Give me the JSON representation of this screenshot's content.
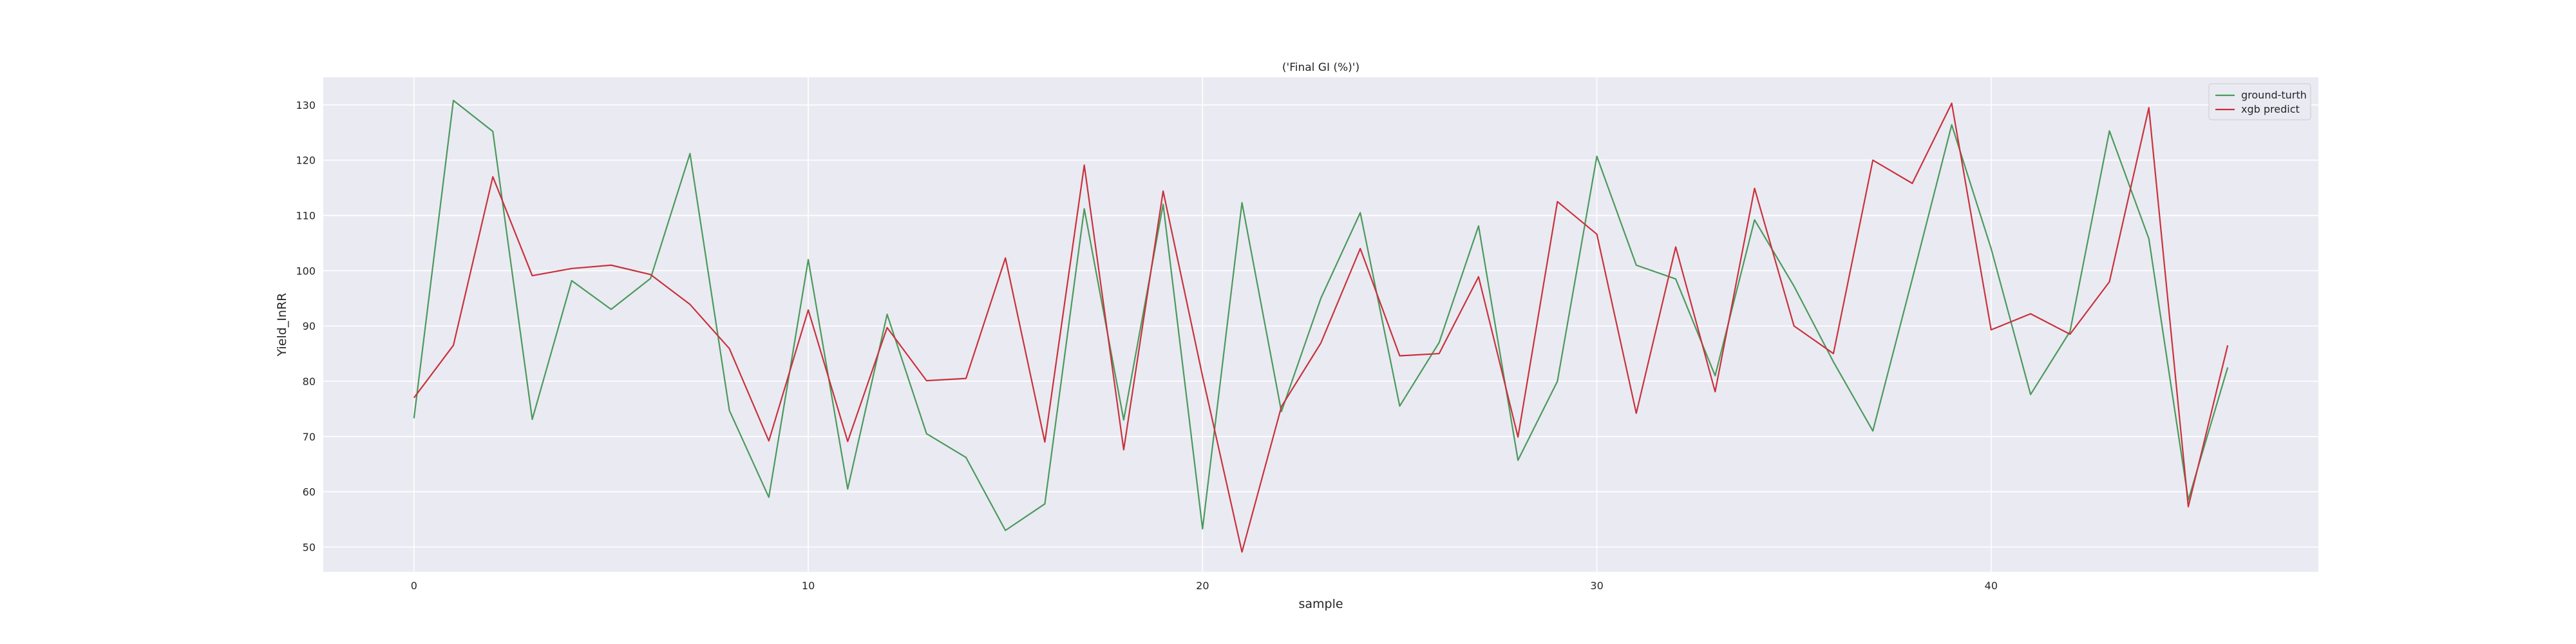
{
  "chart_data": {
    "type": "line",
    "title": "('Final GI (%)')",
    "xlabel": "sample",
    "ylabel": "Yield_InRR",
    "xlim": [
      -2.3,
      48.3
    ],
    "ylim": [
      45.5,
      135
    ],
    "xticks": [
      0,
      10,
      20,
      30,
      40
    ],
    "yticks": [
      50,
      60,
      70,
      80,
      90,
      100,
      110,
      120,
      130
    ],
    "grid": true,
    "legend_position": "top-right",
    "x": [
      0,
      1,
      2,
      3,
      4,
      5,
      6,
      7,
      8,
      9,
      10,
      11,
      12,
      13,
      14,
      15,
      16,
      17,
      18,
      19,
      20,
      21,
      22,
      23,
      24,
      25,
      26,
      27,
      28,
      29,
      30,
      31,
      32,
      33,
      34,
      35,
      36,
      37,
      38,
      39,
      40,
      41,
      42,
      43,
      44,
      45,
      46
    ],
    "series": [
      {
        "name": "ground-turth",
        "color": "#4a9a5c",
        "values": [
          73.3,
          130.8,
          125.2,
          73.1,
          98.2,
          93.0,
          98.6,
          121.2,
          74.7,
          59.0,
          102.0,
          60.5,
          92.1,
          70.5,
          66.2,
          53.0,
          57.8,
          111.2,
          73.0,
          112.0,
          53.3,
          112.3,
          74.5,
          95.0,
          110.5,
          75.5,
          87.0,
          108.1,
          65.7,
          80.0,
          120.7,
          101.0,
          98.5,
          81.0,
          109.2,
          97.2,
          83.5,
          71.0,
          98.5,
          126.4,
          104.0,
          77.6,
          89.0,
          125.3,
          105.8,
          58.5,
          82.5
        ]
      },
      {
        "name": "xgb predict",
        "color": "#c8323c",
        "values": [
          77.0,
          86.5,
          117.0,
          99.1,
          100.4,
          101.0,
          99.3,
          93.9,
          85.9,
          69.2,
          92.9,
          69.1,
          89.7,
          80.1,
          80.5,
          102.3,
          69.0,
          119.1,
          67.6,
          114.4,
          80.9,
          49.1,
          75.4,
          86.9,
          104.0,
          84.6,
          85.0,
          98.9,
          69.9,
          112.5,
          106.6,
          74.2,
          104.3,
          78.1,
          114.9,
          90.0,
          85.0,
          120.0,
          115.8,
          130.3,
          89.3,
          92.2,
          88.5,
          98.0,
          129.5,
          57.3,
          86.5
        ]
      }
    ]
  },
  "style": {
    "plot_background": "#eaeaf2",
    "grid_color": "#ffffff"
  }
}
